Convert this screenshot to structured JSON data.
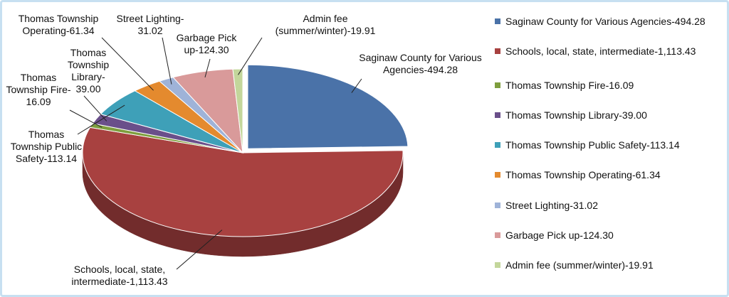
{
  "chart_data": {
    "type": "pie",
    "categories": [
      "Saginaw County for Various Agencies-494.28",
      "Schools, local, state, intermediate-1,113.43",
      "Thomas Township Fire-16.09",
      "Thomas Township Library-39.00",
      "Thomas Township Public Safety-113.14",
      "Thomas Township Operating-61.34",
      "Street Lighting-31.02",
      "Garbage Pick up-124.30",
      "Admin fee (summer/winter)-19.91"
    ],
    "values": [
      494.28,
      1113.43,
      16.09,
      39.0,
      113.14,
      61.34,
      31.02,
      124.3,
      19.91
    ],
    "colors": [
      "#4a72a8",
      "#a84140",
      "#7e9e3e",
      "#6a4f8a",
      "#3ea0b8",
      "#e48a2e",
      "#9fb3d8",
      "#d99a9a",
      "#c3d69b"
    ],
    "legend": "right",
    "three_d": true
  }
}
